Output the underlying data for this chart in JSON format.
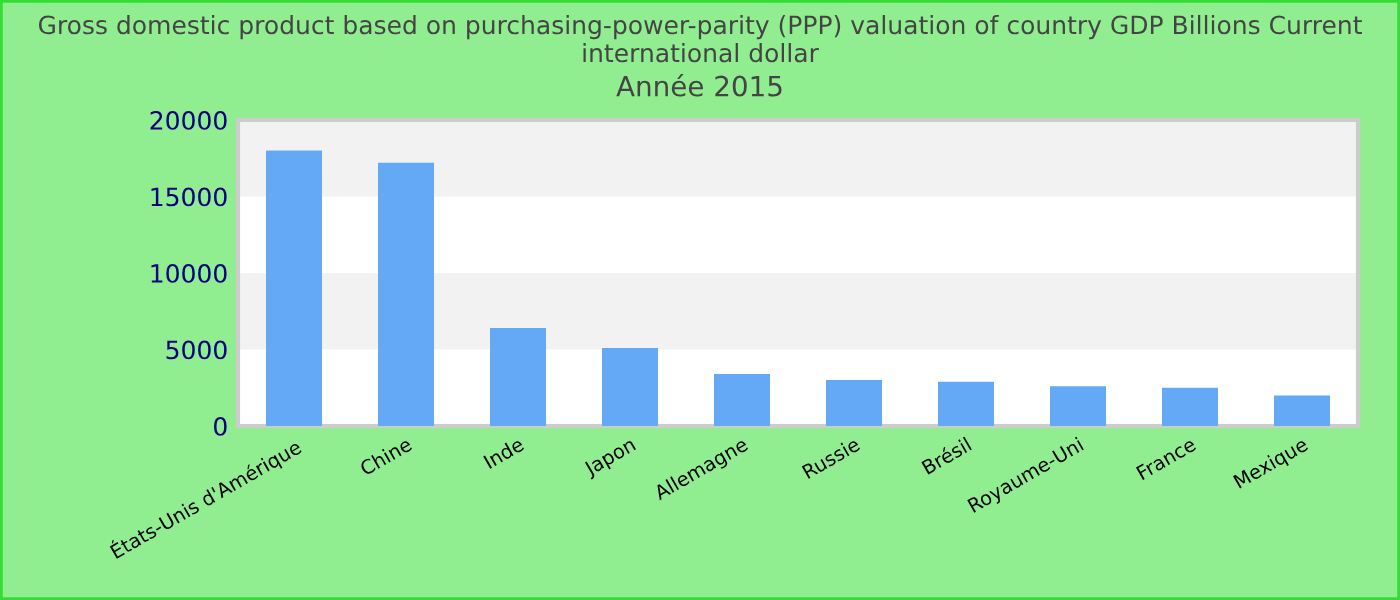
{
  "chart_data": {
    "type": "bar",
    "title": "Gross domestic product based on purchasing-power-parity (PPP) valuation of country GDP Billions Current international dollar",
    "subtitle": "Année 2015",
    "categories": [
      "États-Unis d'Amérique",
      "Chine",
      "Inde",
      "Japon",
      "Allemagne",
      "Russie",
      "Brésil",
      "Royaume-Uni",
      "France",
      "Mexique"
    ],
    "values": [
      18000,
      17200,
      6400,
      5100,
      3400,
      3000,
      2900,
      2600,
      2500,
      2000
    ],
    "color": "#63a9f5",
    "ylim": [
      0,
      20000
    ],
    "yticks": [
      0,
      5000,
      10000,
      15000,
      20000
    ],
    "bands": [
      {
        "axis": "y",
        "from": 5000,
        "to": 10000,
        "color": "#f2f2f2"
      },
      {
        "axis": "y",
        "from": 15000,
        "to": 20000,
        "color": "#f2f2f2"
      }
    ],
    "grid": false,
    "legend": false
  }
}
